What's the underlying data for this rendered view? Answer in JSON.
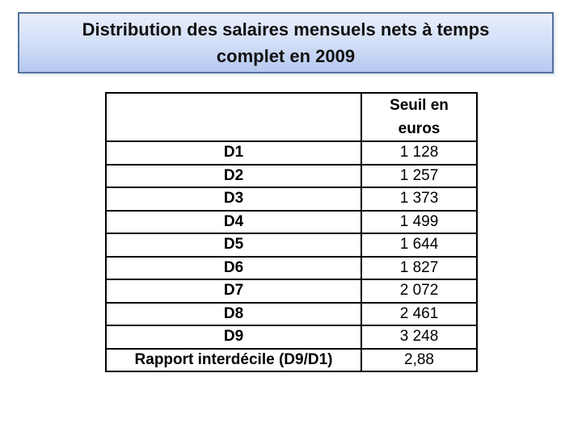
{
  "slide": {
    "title": "Distribution des salaires mensuels nets à temps complet en 2009"
  },
  "table": {
    "header": "Seuil en euros",
    "rows": [
      {
        "label": "D1",
        "value": "1 128"
      },
      {
        "label": "D2",
        "value": "1 257"
      },
      {
        "label": "D3",
        "value": "1 373"
      },
      {
        "label": "D4",
        "value": "1 499"
      },
      {
        "label": "D5",
        "value": "1 644"
      },
      {
        "label": "D6",
        "value": "1 827"
      },
      {
        "label": "D7",
        "value": "2 072"
      },
      {
        "label": "D8",
        "value": "2 461"
      },
      {
        "label": "D9",
        "value": "3 248"
      },
      {
        "label": "Rapport interdécile (D9/D1)",
        "value": "2,88"
      }
    ]
  },
  "colors": {
    "banner_gradient_top": "#e9effc",
    "banner_gradient_bottom": "#b5c8ef",
    "banner_border": "#52739f",
    "table_border": "#000000",
    "text": "#111111",
    "background": "#ffffff"
  }
}
